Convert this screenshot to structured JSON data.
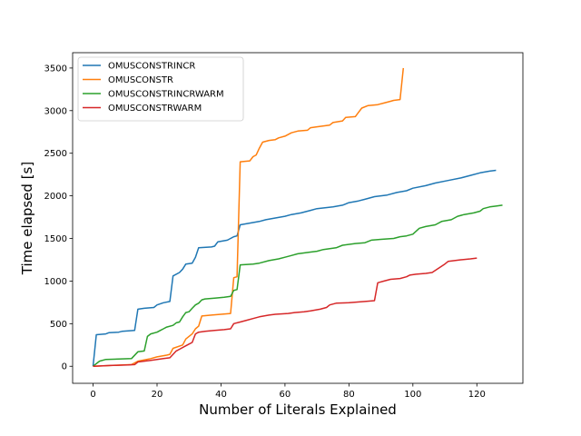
{
  "chart_data": {
    "type": "line",
    "title": "",
    "xlabel": "Number of Literals Explained",
    "ylabel": "Time elapsed [s]",
    "xlim": [
      -6.4,
      134.4
    ],
    "ylim": [
      -200,
      3680
    ],
    "xticks": [
      0,
      20,
      40,
      60,
      80,
      100,
      120
    ],
    "yticks": [
      0,
      500,
      1000,
      1500,
      2000,
      2500,
      3000,
      3500
    ],
    "grid": false,
    "legend_placement": "top-left",
    "series": [
      {
        "name": "OMUSCONSTRINCR",
        "color": "#1f77b4",
        "points": [
          [
            0,
            0
          ],
          [
            1,
            370
          ],
          [
            4,
            380
          ],
          [
            5,
            395
          ],
          [
            8,
            400
          ],
          [
            9,
            410
          ],
          [
            13,
            420
          ],
          [
            14,
            670
          ],
          [
            16,
            680
          ],
          [
            19,
            690
          ],
          [
            20,
            720
          ],
          [
            22,
            745
          ],
          [
            24,
            760
          ],
          [
            25,
            1060
          ],
          [
            27,
            1100
          ],
          [
            28,
            1140
          ],
          [
            29,
            1200
          ],
          [
            31,
            1210
          ],
          [
            32,
            1280
          ],
          [
            33,
            1390
          ],
          [
            37,
            1400
          ],
          [
            38,
            1410
          ],
          [
            39,
            1460
          ],
          [
            42,
            1480
          ],
          [
            44,
            1520
          ],
          [
            45,
            1530
          ],
          [
            46,
            1660
          ],
          [
            49,
            1680
          ],
          [
            52,
            1700
          ],
          [
            54,
            1720
          ],
          [
            57,
            1740
          ],
          [
            60,
            1760
          ],
          [
            62,
            1780
          ],
          [
            65,
            1800
          ],
          [
            68,
            1830
          ],
          [
            70,
            1850
          ],
          [
            75,
            1870
          ],
          [
            78,
            1890
          ],
          [
            80,
            1920
          ],
          [
            83,
            1940
          ],
          [
            85,
            1960
          ],
          [
            88,
            1990
          ],
          [
            92,
            2010
          ],
          [
            95,
            2040
          ],
          [
            98,
            2060
          ],
          [
            100,
            2090
          ],
          [
            104,
            2120
          ],
          [
            107,
            2150
          ],
          [
            111,
            2180
          ],
          [
            115,
            2210
          ],
          [
            118,
            2240
          ],
          [
            121,
            2270
          ],
          [
            124,
            2290
          ],
          [
            126,
            2300
          ]
        ]
      },
      {
        "name": "OMUSCONSTR",
        "color": "#ff7f0e",
        "points": [
          [
            0,
            0
          ],
          [
            12,
            20
          ],
          [
            14,
            60
          ],
          [
            18,
            90
          ],
          [
            20,
            110
          ],
          [
            23,
            130
          ],
          [
            24,
            140
          ],
          [
            25,
            210
          ],
          [
            28,
            250
          ],
          [
            29,
            320
          ],
          [
            31,
            380
          ],
          [
            32,
            440
          ],
          [
            33,
            470
          ],
          [
            34,
            590
          ],
          [
            37,
            600
          ],
          [
            40,
            610
          ],
          [
            43,
            620
          ],
          [
            44,
            1040
          ],
          [
            45,
            1050
          ],
          [
            46,
            2400
          ],
          [
            49,
            2410
          ],
          [
            50,
            2460
          ],
          [
            51,
            2480
          ],
          [
            52,
            2560
          ],
          [
            53,
            2630
          ],
          [
            55,
            2650
          ],
          [
            57,
            2660
          ],
          [
            58,
            2680
          ],
          [
            60,
            2700
          ],
          [
            62,
            2740
          ],
          [
            64,
            2760
          ],
          [
            67,
            2770
          ],
          [
            68,
            2800
          ],
          [
            70,
            2810
          ],
          [
            74,
            2830
          ],
          [
            75,
            2860
          ],
          [
            78,
            2880
          ],
          [
            79,
            2920
          ],
          [
            82,
            2930
          ],
          [
            83,
            2980
          ],
          [
            84,
            3030
          ],
          [
            86,
            3060
          ],
          [
            89,
            3070
          ],
          [
            91,
            3090
          ],
          [
            93,
            3110
          ],
          [
            94,
            3120
          ],
          [
            96,
            3130
          ],
          [
            97,
            3500
          ]
        ]
      },
      {
        "name": "OMUSCONSTRINCRWARM",
        "color": "#2ca02c",
        "points": [
          [
            0,
            0
          ],
          [
            2,
            60
          ],
          [
            4,
            80
          ],
          [
            8,
            85
          ],
          [
            12,
            90
          ],
          [
            14,
            170
          ],
          [
            16,
            180
          ],
          [
            17,
            350
          ],
          [
            18,
            380
          ],
          [
            20,
            400
          ],
          [
            21,
            420
          ],
          [
            22,
            440
          ],
          [
            23,
            460
          ],
          [
            25,
            480
          ],
          [
            26,
            510
          ],
          [
            27,
            520
          ],
          [
            28,
            580
          ],
          [
            29,
            630
          ],
          [
            30,
            640
          ],
          [
            31,
            680
          ],
          [
            32,
            720
          ],
          [
            33,
            740
          ],
          [
            34,
            780
          ],
          [
            35,
            790
          ],
          [
            38,
            800
          ],
          [
            41,
            810
          ],
          [
            43,
            820
          ],
          [
            44,
            890
          ],
          [
            45,
            900
          ],
          [
            46,
            1190
          ],
          [
            50,
            1200
          ],
          [
            52,
            1210
          ],
          [
            55,
            1240
          ],
          [
            58,
            1260
          ],
          [
            60,
            1280
          ],
          [
            62,
            1300
          ],
          [
            64,
            1320
          ],
          [
            68,
            1340
          ],
          [
            70,
            1350
          ],
          [
            72,
            1370
          ],
          [
            76,
            1390
          ],
          [
            78,
            1420
          ],
          [
            82,
            1440
          ],
          [
            85,
            1450
          ],
          [
            87,
            1480
          ],
          [
            90,
            1490
          ],
          [
            94,
            1500
          ],
          [
            96,
            1520
          ],
          [
            98,
            1530
          ],
          [
            100,
            1550
          ],
          [
            102,
            1620
          ],
          [
            104,
            1640
          ],
          [
            107,
            1660
          ],
          [
            109,
            1700
          ],
          [
            112,
            1720
          ],
          [
            114,
            1760
          ],
          [
            116,
            1780
          ],
          [
            119,
            1800
          ],
          [
            121,
            1820
          ],
          [
            122,
            1850
          ],
          [
            124,
            1870
          ],
          [
            126,
            1880
          ],
          [
            128,
            1890
          ]
        ]
      },
      {
        "name": "OMUSCONSTRWARM",
        "color": "#d62728",
        "points": [
          [
            0,
            0
          ],
          [
            6,
            10
          ],
          [
            11,
            15
          ],
          [
            13,
            20
          ],
          [
            14,
            50
          ],
          [
            16,
            60
          ],
          [
            18,
            70
          ],
          [
            20,
            80
          ],
          [
            22,
            90
          ],
          [
            24,
            100
          ],
          [
            26,
            180
          ],
          [
            27,
            200
          ],
          [
            29,
            240
          ],
          [
            30,
            260
          ],
          [
            31,
            280
          ],
          [
            32,
            380
          ],
          [
            33,
            400
          ],
          [
            35,
            410
          ],
          [
            38,
            420
          ],
          [
            41,
            430
          ],
          [
            43,
            440
          ],
          [
            44,
            500
          ],
          [
            46,
            520
          ],
          [
            48,
            540
          ],
          [
            50,
            560
          ],
          [
            52,
            580
          ],
          [
            55,
            600
          ],
          [
            57,
            610
          ],
          [
            61,
            620
          ],
          [
            63,
            630
          ],
          [
            66,
            640
          ],
          [
            68,
            650
          ],
          [
            71,
            670
          ],
          [
            73,
            690
          ],
          [
            74,
            720
          ],
          [
            76,
            740
          ],
          [
            80,
            745
          ],
          [
            85,
            760
          ],
          [
            88,
            770
          ],
          [
            89,
            980
          ],
          [
            91,
            1000
          ],
          [
            93,
            1020
          ],
          [
            96,
            1030
          ],
          [
            98,
            1050
          ],
          [
            99,
            1070
          ],
          [
            101,
            1080
          ],
          [
            104,
            1090
          ],
          [
            106,
            1100
          ],
          [
            108,
            1150
          ],
          [
            110,
            1200
          ],
          [
            111,
            1230
          ],
          [
            115,
            1250
          ],
          [
            118,
            1260
          ],
          [
            120,
            1270
          ]
        ]
      }
    ]
  }
}
